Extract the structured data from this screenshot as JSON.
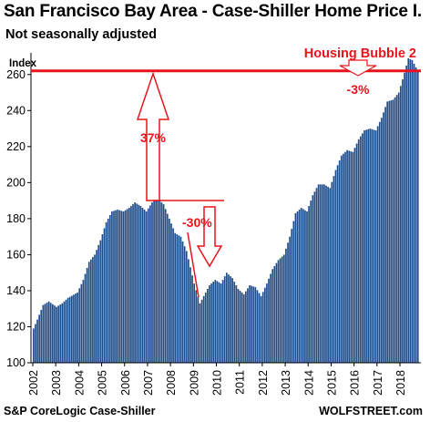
{
  "header": {
    "title": "San Francisco Bay Area - Case-Shiller Home Price I.",
    "subtitle": "Not seasonally adjusted"
  },
  "footer": {
    "source": "S&P CoreLogic Case-Shiller",
    "brand": "WOLFSTREET.com"
  },
  "colors": {
    "bar": "#1f4e8c",
    "accent": "#e8141c",
    "axis": "#000000"
  },
  "chart_data": {
    "type": "bar",
    "title": "San Francisco Bay Area - Case-Shiller Home Price I.",
    "subtitle": "Not seasonally adjusted",
    "ylabel": "Index",
    "xlabel": "",
    "ylim": [
      100,
      270
    ],
    "yticks": [
      100,
      120,
      140,
      160,
      180,
      200,
      220,
      240,
      260
    ],
    "grid": false,
    "legend": "none",
    "x_tick_labels": [
      "2002",
      "2003",
      "2004",
      "2005",
      "2006",
      "2007",
      "2008",
      "2009",
      "2010",
      "2011",
      "2012",
      "2013",
      "2014",
      "2015",
      "2016",
      "2017",
      "2018"
    ],
    "frequency": "monthly",
    "start": "2002-01",
    "end": "2018-10",
    "anchor_values": [
      [
        "2002-01",
        119
      ],
      [
        "2002-03",
        124
      ],
      [
        "2002-06",
        132
      ],
      [
        "2002-09",
        134
      ],
      [
        "2003-01",
        131
      ],
      [
        "2003-04",
        133
      ],
      [
        "2003-07",
        136
      ],
      [
        "2003-12",
        139
      ],
      [
        "2004-03",
        146
      ],
      [
        "2004-06",
        156
      ],
      [
        "2004-09",
        160
      ],
      [
        "2004-12",
        168
      ],
      [
        "2005-03",
        178
      ],
      [
        "2005-06",
        184
      ],
      [
        "2005-09",
        185
      ],
      [
        "2005-12",
        184
      ],
      [
        "2006-03",
        186
      ],
      [
        "2006-06",
        189
      ],
      [
        "2006-09",
        187
      ],
      [
        "2006-12",
        184
      ],
      [
        "2007-03",
        189
      ],
      [
        "2007-06",
        191
      ],
      [
        "2007-09",
        188
      ],
      [
        "2007-12",
        180
      ],
      [
        "2008-03",
        172
      ],
      [
        "2008-06",
        170
      ],
      [
        "2008-09",
        162
      ],
      [
        "2009-01",
        144
      ],
      [
        "2009-04",
        133
      ],
      [
        "2009-06",
        137
      ],
      [
        "2009-09",
        143
      ],
      [
        "2009-12",
        146
      ],
      [
        "2010-03",
        144
      ],
      [
        "2010-06",
        150
      ],
      [
        "2010-09",
        147
      ],
      [
        "2010-12",
        141
      ],
      [
        "2011-03",
        138
      ],
      [
        "2011-06",
        143
      ],
      [
        "2011-09",
        142
      ],
      [
        "2011-12",
        137
      ],
      [
        "2012-03",
        144
      ],
      [
        "2012-06",
        152
      ],
      [
        "2012-09",
        157
      ],
      [
        "2012-12",
        160
      ],
      [
        "2013-03",
        170
      ],
      [
        "2013-06",
        183
      ],
      [
        "2013-09",
        186
      ],
      [
        "2013-12",
        184
      ],
      [
        "2014-03",
        193
      ],
      [
        "2014-06",
        199
      ],
      [
        "2014-09",
        199
      ],
      [
        "2014-12",
        197
      ],
      [
        "2015-03",
        207
      ],
      [
        "2015-06",
        215
      ],
      [
        "2015-09",
        218
      ],
      [
        "2015-12",
        217
      ],
      [
        "2016-03",
        224
      ],
      [
        "2016-06",
        229
      ],
      [
        "2016-09",
        230
      ],
      [
        "2016-12",
        229
      ],
      [
        "2017-03",
        236
      ],
      [
        "2017-06",
        245
      ],
      [
        "2017-09",
        246
      ],
      [
        "2017-12",
        250
      ],
      [
        "2018-03",
        261
      ],
      [
        "2018-05",
        269
      ],
      [
        "2018-07",
        268
      ],
      [
        "2018-10",
        262
      ]
    ],
    "reference_line": {
      "value": 262
    },
    "annotations": [
      {
        "text": "Housing Bubble 2"
      },
      {
        "text": "37%"
      },
      {
        "text": "-30%"
      },
      {
        "text": "-3%"
      }
    ]
  }
}
